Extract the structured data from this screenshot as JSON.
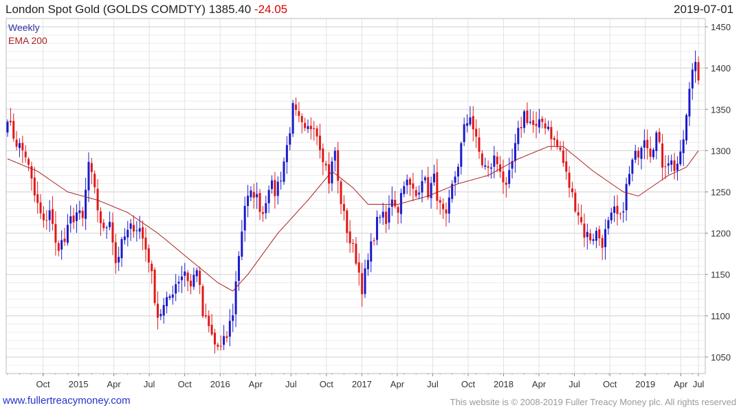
{
  "header": {
    "title": "London Spot Gold (GOLDS COMDTY) 1385.40",
    "change": "-24.05",
    "date": "2019-07-01"
  },
  "footer": {
    "site": "www.fullertreacymoney.com",
    "copyright": "This website is © 2008-2019 Fuller Treacy Money plc. All rights reserved"
  },
  "chart_data": {
    "type": "candlestick",
    "title": "London Spot Gold (GOLDS COMDTY)",
    "frequency_label": "Weekly",
    "indicator_label": "EMA 200",
    "last_value": 1385.4,
    "change": -24.05,
    "ylim": [
      1030,
      1460
    ],
    "yticks": [
      1050,
      1100,
      1150,
      1200,
      1250,
      1300,
      1350,
      1400,
      1450
    ],
    "x_ticks": [
      {
        "label": "Oct",
        "t": 0.0513
      },
      {
        "label": "2015",
        "t": 0.1026
      },
      {
        "label": "Apr",
        "t": 0.1538
      },
      {
        "label": "Jul",
        "t": 0.2051
      },
      {
        "label": "Oct",
        "t": 0.2564
      },
      {
        "label": "2016",
        "t": 0.3077
      },
      {
        "label": "Apr",
        "t": 0.359
      },
      {
        "label": "Jul",
        "t": 0.4103
      },
      {
        "label": "Oct",
        "t": 0.4615
      },
      {
        "label": "2017",
        "t": 0.5128
      },
      {
        "label": "Apr",
        "t": 0.5641
      },
      {
        "label": "Jul",
        "t": 0.6154
      },
      {
        "label": "Oct",
        "t": 0.6667
      },
      {
        "label": "2018",
        "t": 0.7179
      },
      {
        "label": "Apr",
        "t": 0.7692
      },
      {
        "label": "Jul",
        "t": 0.8205
      },
      {
        "label": "Oct",
        "t": 0.8718
      },
      {
        "label": "2019",
        "t": 0.9231
      },
      {
        "label": "Apr",
        "t": 0.9744
      },
      {
        "label": "Jul",
        "t": 1.0
      }
    ],
    "anchors": [
      [
        0,
        1335
      ],
      [
        3,
        1310
      ],
      [
        6,
        1295
      ],
      [
        9,
        1245
      ],
      [
        12,
        1210
      ],
      [
        14,
        1230
      ],
      [
        16,
        1185
      ],
      [
        19,
        1190
      ],
      [
        21,
        1215
      ],
      [
        23,
        1225
      ],
      [
        25,
        1215
      ],
      [
        27,
        1285
      ],
      [
        30,
        1230
      ],
      [
        32,
        1200
      ],
      [
        34,
        1220
      ],
      [
        36,
        1165
      ],
      [
        39,
        1195
      ],
      [
        42,
        1210
      ],
      [
        44,
        1205
      ],
      [
        47,
        1170
      ],
      [
        50,
        1100
      ],
      [
        53,
        1115
      ],
      [
        56,
        1140
      ],
      [
        59,
        1155
      ],
      [
        61,
        1135
      ],
      [
        63,
        1160
      ],
      [
        65,
        1100
      ],
      [
        67,
        1085
      ],
      [
        69,
        1065
      ],
      [
        71,
        1060
      ],
      [
        73,
        1075
      ],
      [
        75,
        1105
      ],
      [
        77,
        1175
      ],
      [
        79,
        1235
      ],
      [
        82,
        1250
      ],
      [
        85,
        1225
      ],
      [
        87,
        1260
      ],
      [
        89,
        1250
      ],
      [
        91,
        1270
      ],
      [
        93,
        1305
      ],
      [
        95,
        1350
      ],
      [
        97,
        1335
      ],
      [
        99,
        1320
      ],
      [
        102,
        1335
      ],
      [
        105,
        1295
      ],
      [
        107,
        1265
      ],
      [
        109,
        1300
      ],
      [
        110,
        1260
      ],
      [
        112,
        1220
      ],
      [
        114,
        1190
      ],
      [
        116,
        1170
      ],
      [
        118,
        1135
      ],
      [
        120,
        1165
      ],
      [
        122,
        1200
      ],
      [
        124,
        1225
      ],
      [
        126,
        1210
      ],
      [
        128,
        1245
      ],
      [
        130,
        1230
      ],
      [
        132,
        1265
      ],
      [
        134,
        1255
      ],
      [
        136,
        1245
      ],
      [
        138,
        1270
      ],
      [
        140,
        1250
      ],
      [
        142,
        1265
      ],
      [
        144,
        1230
      ],
      [
        146,
        1215
      ],
      [
        148,
        1255
      ],
      [
        150,
        1285
      ],
      [
        152,
        1325
      ],
      [
        154,
        1345
      ],
      [
        156,
        1310
      ],
      [
        158,
        1285
      ],
      [
        160,
        1275
      ],
      [
        162,
        1290
      ],
      [
        164,
        1280
      ],
      [
        166,
        1250
      ],
      [
        168,
        1285
      ],
      [
        170,
        1320
      ],
      [
        172,
        1345
      ],
      [
        174,
        1335
      ],
      [
        176,
        1325
      ],
      [
        178,
        1335
      ],
      [
        180,
        1330
      ],
      [
        182,
        1310
      ],
      [
        184,
        1300
      ],
      [
        186,
        1270
      ],
      [
        188,
        1245
      ],
      [
        190,
        1225
      ],
      [
        192,
        1200
      ],
      [
        194,
        1195
      ],
      [
        196,
        1200
      ],
      [
        198,
        1190
      ],
      [
        200,
        1210
      ],
      [
        202,
        1225
      ],
      [
        204,
        1215
      ],
      [
        206,
        1255
      ],
      [
        208,
        1285
      ],
      [
        210,
        1300
      ],
      [
        212,
        1320
      ],
      [
        214,
        1300
      ],
      [
        216,
        1320
      ],
      [
        218,
        1285
      ],
      [
        220,
        1290
      ],
      [
        222,
        1280
      ],
      [
        224,
        1290
      ],
      [
        226,
        1340
      ],
      [
        228,
        1400
      ],
      [
        229,
        1409
      ],
      [
        230,
        1385
      ]
    ],
    "ema_anchors": [
      [
        0,
        1290
      ],
      [
        10,
        1275
      ],
      [
        20,
        1250
      ],
      [
        30,
        1240
      ],
      [
        40,
        1225
      ],
      [
        50,
        1200
      ],
      [
        60,
        1170
      ],
      [
        70,
        1140
      ],
      [
        75,
        1130
      ],
      [
        80,
        1150
      ],
      [
        90,
        1200
      ],
      [
        100,
        1240
      ],
      [
        108,
        1275
      ],
      [
        115,
        1255
      ],
      [
        120,
        1235
      ],
      [
        130,
        1235
      ],
      [
        140,
        1245
      ],
      [
        150,
        1260
      ],
      [
        160,
        1270
      ],
      [
        170,
        1290
      ],
      [
        180,
        1305
      ],
      [
        185,
        1305
      ],
      [
        195,
        1275
      ],
      [
        205,
        1250
      ],
      [
        210,
        1245
      ],
      [
        220,
        1270
      ],
      [
        226,
        1280
      ],
      [
        230,
        1300
      ]
    ]
  }
}
